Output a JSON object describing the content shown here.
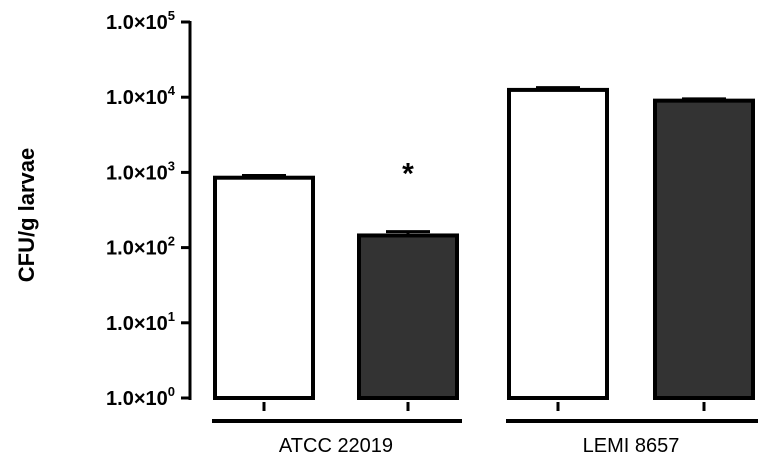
{
  "chart_data": {
    "type": "bar",
    "ylabel": "CFU/g larvae",
    "yscale": "log",
    "ylim": [
      1,
      100000
    ],
    "yticks": [
      {
        "value": 1,
        "mantissa": "1.0×10",
        "exp": "0"
      },
      {
        "value": 10,
        "mantissa": "1.0×10",
        "exp": "1"
      },
      {
        "value": 100,
        "mantissa": "1.0×10",
        "exp": "2"
      },
      {
        "value": 1000,
        "mantissa": "1.0×10",
        "exp": "3"
      },
      {
        "value": 10000,
        "mantissa": "1.0×10",
        "exp": "4"
      },
      {
        "value": 100000,
        "mantissa": "1.0×10",
        "exp": "5"
      }
    ],
    "groups": [
      "ATCC 22019",
      "LEMI 8657"
    ],
    "bars": [
      {
        "group": "ATCC 22019",
        "fill": "#ffffff",
        "value": 850,
        "error": 60
      },
      {
        "group": "ATCC 22019",
        "fill": "#333333",
        "value": 145,
        "error": 18,
        "annotation": "*"
      },
      {
        "group": "LEMI 8657",
        "fill": "#ffffff",
        "value": 12500,
        "error": 900
      },
      {
        "group": "LEMI 8657",
        "fill": "#333333",
        "value": 9000,
        "error": 500
      }
    ],
    "grid": false,
    "legend": "none"
  }
}
